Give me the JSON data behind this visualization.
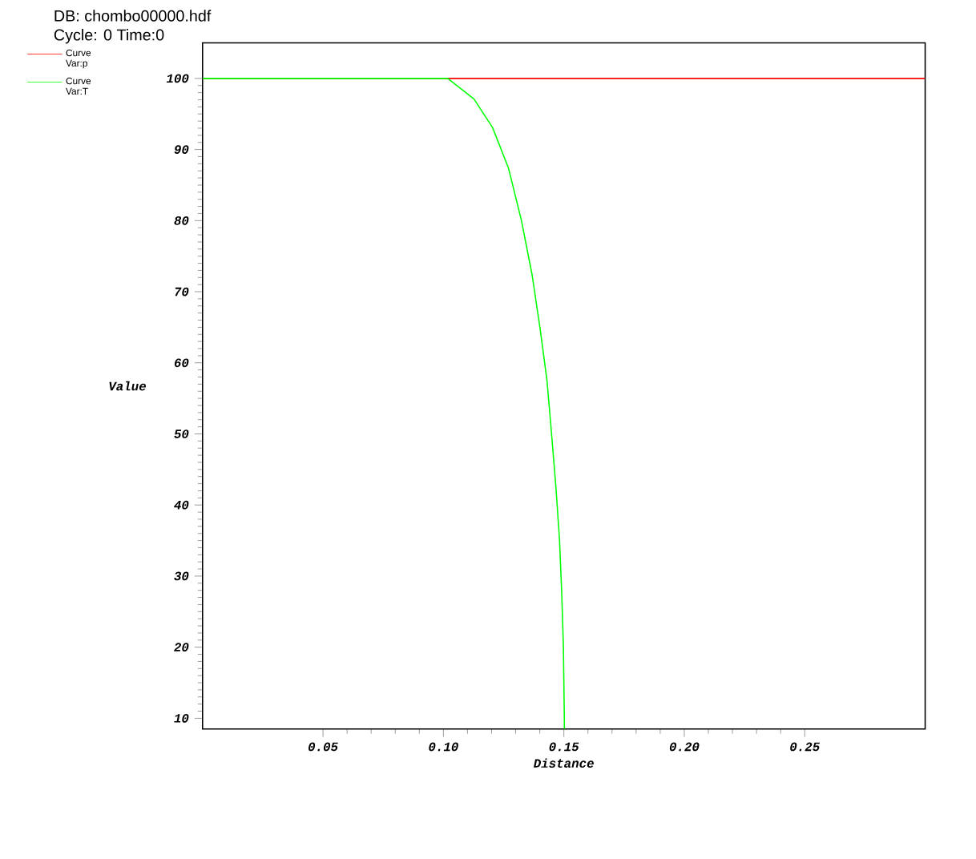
{
  "chart_data": {
    "type": "line",
    "title": "DB: chombo00000.hdf",
    "subtitle": "Cycle: 0 Time:0",
    "xlabel": "Distance",
    "ylabel": "Value",
    "xlim": [
      0,
      0.3
    ],
    "ylim": [
      8.5,
      105
    ],
    "xticks": [
      0.05,
      {
        "value": 0.1,
        "label": "0.10"
      },
      0.15,
      {
        "value": 0.2,
        "label": "0.20"
      },
      0.25
    ],
    "yticks": [
      10,
      20,
      30,
      40,
      50,
      60,
      70,
      80,
      90,
      100
    ],
    "grid": false,
    "legend": "top left",
    "marker": "none",
    "line_style": "solid",
    "series": [
      {
        "name": "Curve Var:p",
        "color": "#ff0000",
        "x": [
          0,
          0.3
        ],
        "values": [
          100,
          100
        ]
      },
      {
        "name": "Curve Var:T",
        "color": "#00ff00",
        "x": [
          0,
          0.1018,
          0.1127,
          0.1204,
          0.127,
          0.1324,
          0.1368,
          0.1401,
          0.143,
          0.1449,
          0.1467,
          0.1482,
          0.1491,
          0.1498,
          0.1502,
          0.1502
        ],
        "values": [
          100,
          100,
          97.1,
          93.1,
          87.4,
          80.0,
          72.4,
          64.9,
          57.5,
          50.0,
          42.5,
          35.1,
          27.7,
          20.2,
          9.9,
          8.5
        ]
      }
    ]
  }
}
